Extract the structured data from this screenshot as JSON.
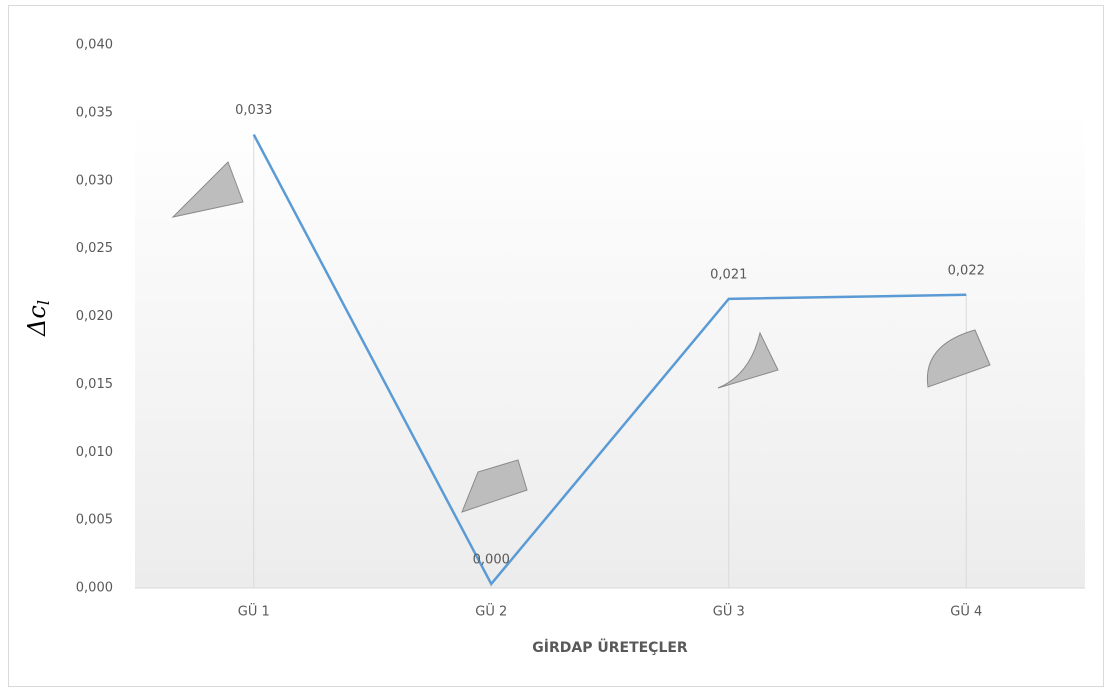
{
  "chart_data": {
    "type": "line",
    "categories": [
      "GÜ 1",
      "GÜ 2",
      "GÜ 3",
      "GÜ 4"
    ],
    "series": [
      {
        "color": "#5b9bd5",
        "values": [
          0.0334,
          0.0003,
          0.0213,
          0.0216
        ],
        "value_labels": [
          "0,033",
          "0,000",
          "0,021",
          "0,022"
        ]
      }
    ],
    "ylim": [
      0,
      0.04
    ],
    "yticks": [
      {
        "value": 0,
        "label": "0,000"
      },
      {
        "value": 0.005,
        "label": "0,005"
      },
      {
        "value": 0.01,
        "label": "0,010"
      },
      {
        "value": 0.015,
        "label": "0,015"
      },
      {
        "value": 0.02,
        "label": "0,020"
      },
      {
        "value": 0.025,
        "label": "0,025"
      },
      {
        "value": 0.03,
        "label": "0,030"
      },
      {
        "value": 0.035,
        "label": "0,035"
      },
      {
        "value": 0.04,
        "label": "0,040"
      }
    ],
    "ylabel": {
      "symbol": "Δc",
      "subscript": "l"
    },
    "xlabel": "GİRDAP ÜRETEÇLER",
    "drop_lines": true
  }
}
